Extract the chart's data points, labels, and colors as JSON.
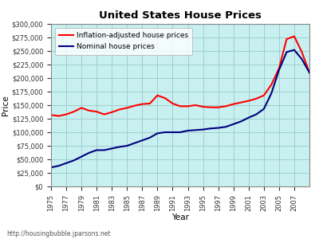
{
  "title": "United States House Prices",
  "xlabel": "Year",
  "ylabel": "Price",
  "watermark": "http://housingbubble.jparsons.net",
  "background_color": "#c8f0f0",
  "grid_color": "#9ecece",
  "ylim": [
    0,
    300000
  ],
  "yticks": [
    0,
    25000,
    50000,
    75000,
    100000,
    125000,
    150000,
    175000,
    200000,
    225000,
    250000,
    275000,
    300000
  ],
  "xlim": [
    1975,
    2009
  ],
  "xticks": [
    1975,
    1977,
    1979,
    1981,
    1983,
    1985,
    1987,
    1989,
    1991,
    1993,
    1995,
    1997,
    1999,
    2001,
    2003,
    2005,
    2007
  ],
  "inflation_adjusted": {
    "label": "Inflation-adjusted house prices",
    "color": "red",
    "years": [
      1975,
      1976,
      1977,
      1978,
      1979,
      1980,
      1981,
      1982,
      1983,
      1984,
      1985,
      1986,
      1987,
      1988,
      1989,
      1990,
      1991,
      1992,
      1993,
      1994,
      1995,
      1996,
      1997,
      1998,
      1999,
      2000,
      2001,
      2002,
      2003,
      2004,
      2005,
      2006,
      2007,
      2008,
      2009
    ],
    "values": [
      132000,
      130000,
      133000,
      138000,
      145000,
      140000,
      138000,
      133000,
      137000,
      142000,
      145000,
      149000,
      152000,
      153000,
      168000,
      163000,
      153000,
      148000,
      148000,
      150000,
      147000,
      146000,
      146000,
      148000,
      152000,
      155000,
      158000,
      162000,
      168000,
      188000,
      218000,
      272000,
      277000,
      248000,
      210000
    ]
  },
  "nominal": {
    "label": "Nominal house prices",
    "color": "#000080",
    "years": [
      1975,
      1976,
      1977,
      1978,
      1979,
      1980,
      1981,
      1982,
      1983,
      1984,
      1985,
      1986,
      1987,
      1988,
      1989,
      1990,
      1991,
      1992,
      1993,
      1994,
      1995,
      1996,
      1997,
      1998,
      1999,
      2000,
      2001,
      2002,
      2003,
      2004,
      2005,
      2006,
      2007,
      2008,
      2009
    ],
    "values": [
      35000,
      38000,
      43000,
      48000,
      55000,
      62000,
      67000,
      67000,
      70000,
      73000,
      75000,
      80000,
      85000,
      90000,
      98000,
      100000,
      100000,
      100000,
      103000,
      104000,
      105000,
      107000,
      108000,
      110000,
      115000,
      120000,
      127000,
      133000,
      143000,
      172000,
      215000,
      248000,
      252000,
      235000,
      210000
    ]
  },
  "legend_fontsize": 6.5,
  "tick_fontsize": 6.0,
  "title_fontsize": 9.5,
  "axis_label_fontsize": 7.5,
  "watermark_fontsize": 5.5,
  "linewidth": 1.5
}
